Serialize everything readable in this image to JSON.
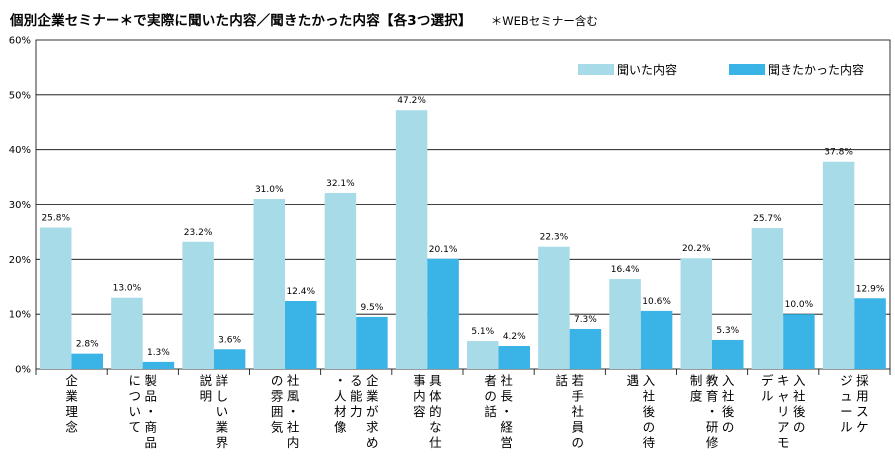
{
  "chart_data": {
    "type": "bar",
    "title": "個別企業セミナー＊で実際に聞いた内容／聞きたかった内容【各3つ選択】",
    "note": "＊WEBセミナー含む",
    "ylim": [
      0,
      60
    ],
    "yticks": [
      "0%",
      "10%",
      "20%",
      "30%",
      "40%",
      "50%",
      "60%"
    ],
    "grid": true,
    "legend_position": "top-right",
    "categories": [
      [
        "企業理念"
      ],
      [
        "製品・商品",
        "について"
      ],
      [
        "詳しい業界",
        "説明"
      ],
      [
        "社風・社内",
        "の雰囲気"
      ],
      [
        "企業が求め",
        "る能力",
        "・人材像"
      ],
      [
        "具体的な仕",
        "事内容"
      ],
      [
        "社長・経営",
        "者の話"
      ],
      [
        "若手社員の",
        "話"
      ],
      [
        "入社後の待",
        "遇"
      ],
      [
        "入社後の",
        "教育・研修",
        "制度"
      ],
      [
        "入社後の",
        "キャリアモ",
        "デル"
      ],
      [
        "採用スケ",
        "ジュール"
      ]
    ],
    "series": [
      {
        "name": "聞いた内容",
        "color": "#a8dbe8",
        "values": [
          25.8,
          13.0,
          23.2,
          31.0,
          32.1,
          47.2,
          5.1,
          22.3,
          16.4,
          20.2,
          25.7,
          37.8
        ],
        "labels": [
          "25.8%",
          "13.0%",
          "23.2%",
          "31.0%",
          "32.1%",
          "47.2%",
          "5.1%",
          "22.3%",
          "16.4%",
          "20.2%",
          "25.7%",
          "37.8%"
        ]
      },
      {
        "name": "聞きたかった内容",
        "color": "#3ab4e6",
        "values": [
          2.8,
          1.3,
          3.6,
          12.4,
          9.5,
          20.1,
          4.2,
          7.3,
          10.6,
          5.3,
          10.0,
          12.9
        ],
        "labels": [
          "2.8%",
          "1.3%",
          "3.6%",
          "12.4%",
          "9.5%",
          "20.1%",
          "4.2%",
          "7.3%",
          "10.6%",
          "5.3%",
          "10.0%",
          "12.9%"
        ]
      }
    ]
  }
}
